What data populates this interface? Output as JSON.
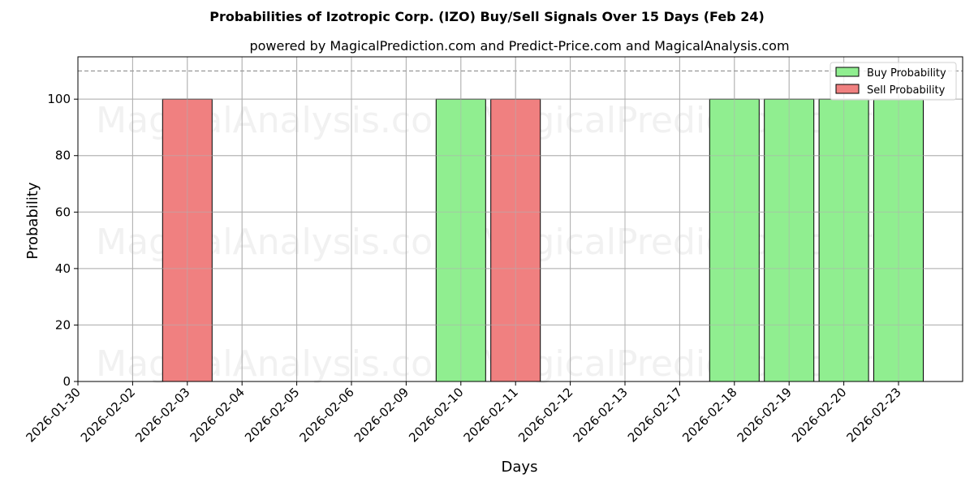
{
  "chart_data": {
    "type": "bar",
    "title": "Probabilities of Izotropic Corp. (IZO) Buy/Sell Signals Over 15 Days (Feb 24)",
    "subtitle": "powered by MagicalPrediction.com and Predict-Price.com and MagicalAnalysis.com",
    "xlabel": "Days",
    "ylabel": "Probability",
    "ylim": [
      0,
      115
    ],
    "yticks": [
      0,
      20,
      40,
      60,
      80,
      100
    ],
    "reference_line": 110,
    "grid": true,
    "legend_position": "upper right",
    "categories": [
      "2026-01-30",
      "2026-02-02",
      "2026-02-03",
      "2026-02-04",
      "2026-02-05",
      "2026-02-06",
      "2026-02-09",
      "2026-02-10",
      "2026-02-11",
      "2026-02-12",
      "2026-02-13",
      "2026-02-17",
      "2026-02-18",
      "2026-02-19",
      "2026-02-20",
      "2026-02-23"
    ],
    "series": [
      {
        "name": "Buy Probability",
        "color": "#90ee90",
        "values": [
          0,
          0,
          0,
          0,
          0,
          0,
          0,
          100,
          0,
          0,
          0,
          0,
          100,
          100,
          100,
          100
        ]
      },
      {
        "name": "Sell Probability",
        "color": "#f08080",
        "values": [
          0,
          0,
          100,
          0,
          0,
          0,
          0,
          0,
          100,
          0,
          0,
          0,
          0,
          0,
          0,
          0
        ]
      }
    ],
    "watermarks": [
      "MagicalAnalysis.com",
      "MagicalPrediction.com"
    ]
  }
}
